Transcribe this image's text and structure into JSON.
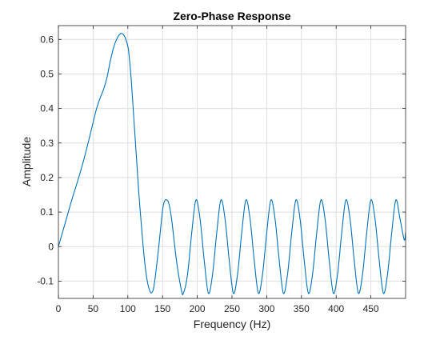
{
  "colors": {
    "line": "#0072BD",
    "axes": "#262626",
    "grid": "#dfdfdf",
    "background": "#ffffff"
  },
  "chart_data": {
    "type": "line",
    "title": "Zero-Phase Response",
    "xlabel": "Frequency (Hz)",
    "ylabel": "Amplitude",
    "xlim": [
      0,
      500
    ],
    "ylim": [
      -0.15,
      0.64
    ],
    "grid": true,
    "box": true,
    "xticks": [
      0,
      50,
      100,
      150,
      200,
      250,
      300,
      350,
      400,
      450
    ],
    "xtick_labels": [
      "0",
      "50",
      "100",
      "150",
      "200",
      "250",
      "300",
      "350",
      "400",
      "450"
    ],
    "yticks": [
      -0.1,
      0,
      0.1,
      0.2,
      0.3,
      0.4,
      0.5,
      0.6
    ],
    "ytick_labels": [
      "-0.1",
      "0",
      "0.1",
      "0.2",
      "0.3",
      "0.4",
      "0.5",
      "0.6"
    ],
    "series": [
      {
        "color": "#0072BD",
        "x": [
          0,
          5,
          10,
          15,
          20,
          25,
          30,
          35,
          40,
          45,
          50,
          55,
          60,
          65,
          70,
          75,
          80,
          85,
          90,
          95,
          100,
          102,
          105,
          108,
          110,
          113,
          116,
          120,
          124,
          128,
          132,
          135,
          138,
          144,
          150,
          153,
          156,
          159,
          163,
          170,
          177,
          180,
          186,
          192,
          198,
          204,
          210,
          216,
          222,
          228,
          234,
          240,
          246,
          252,
          258,
          264,
          270,
          276,
          282,
          288,
          294,
          300,
          306,
          312,
          318,
          324,
          330,
          336,
          342,
          348,
          354,
          360,
          366,
          372,
          378,
          384,
          390,
          396,
          402,
          408,
          414,
          420,
          426,
          432,
          438,
          444,
          450,
          456,
          462,
          468,
          474,
          480,
          486,
          492,
          498,
          500
        ],
        "y": [
          0.0,
          0.035,
          0.07,
          0.105,
          0.14,
          0.172,
          0.205,
          0.24,
          0.278,
          0.318,
          0.36,
          0.4,
          0.43,
          0.455,
          0.49,
          0.54,
          0.58,
          0.605,
          0.617,
          0.61,
          0.58,
          0.55,
          0.48,
          0.39,
          0.33,
          0.24,
          0.15,
          0.05,
          -0.04,
          -0.1,
          -0.13,
          -0.132,
          -0.11,
          -0.01,
          0.105,
          0.132,
          0.135,
          0.125,
          0.08,
          -0.04,
          -0.125,
          -0.135,
          -0.08,
          0.04,
          0.135,
          0.08,
          -0.04,
          -0.135,
          -0.08,
          0.04,
          0.135,
          0.08,
          -0.04,
          -0.135,
          -0.08,
          0.04,
          0.135,
          0.08,
          -0.04,
          -0.135,
          -0.08,
          0.04,
          0.135,
          0.08,
          -0.04,
          -0.135,
          -0.08,
          0.04,
          0.135,
          0.08,
          -0.04,
          -0.135,
          -0.08,
          0.04,
          0.135,
          0.08,
          -0.04,
          -0.135,
          -0.08,
          0.04,
          0.135,
          0.08,
          -0.04,
          -0.135,
          -0.08,
          0.04,
          0.135,
          0.08,
          -0.04,
          -0.135,
          -0.08,
          0.04,
          0.135,
          0.08,
          0.02,
          0.04
        ]
      }
    ]
  }
}
